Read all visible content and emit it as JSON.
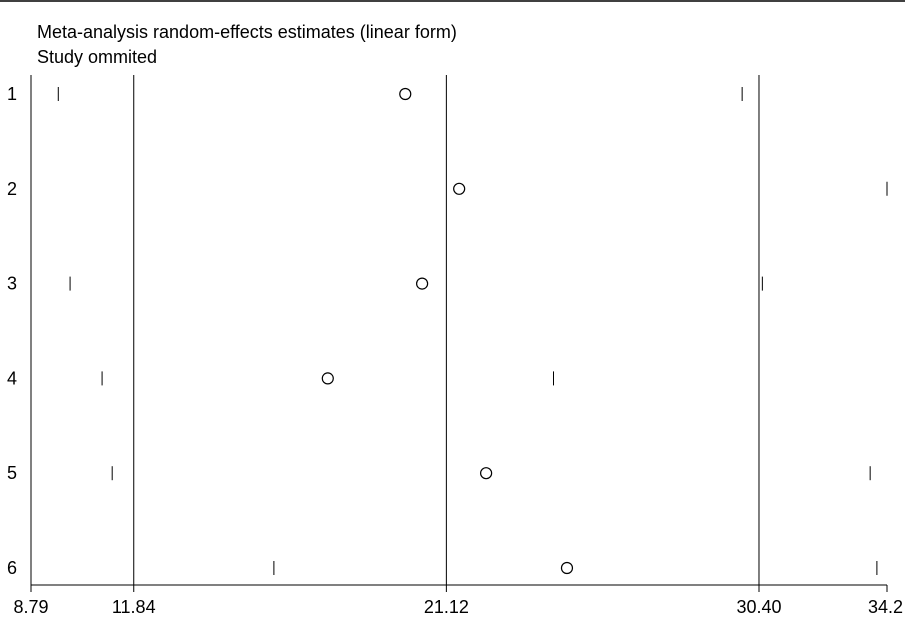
{
  "chart_data": {
    "type": "scatter",
    "title": "Meta-analysis random-effects estimates (linear form)",
    "subtitle": "Study ommited",
    "x_ticks": [
      "8.79",
      "11.84",
      "21.12",
      "30.40",
      "34.2"
    ],
    "x_tick_values": [
      8.79,
      11.84,
      21.12,
      30.4,
      34.2
    ],
    "reference_lines": [
      11.84,
      21.12,
      30.4
    ],
    "xlim": [
      8.79,
      34.2
    ],
    "studies": [
      {
        "label": "1",
        "lower": 9.6,
        "estimate": 19.9,
        "upper": 29.9
      },
      {
        "label": "2",
        "lower": 8.79,
        "estimate": 21.5,
        "upper": 34.4
      },
      {
        "label": "3",
        "lower": 9.95,
        "estimate": 20.4,
        "upper": 30.5
      },
      {
        "label": "4",
        "lower": 10.9,
        "estimate": 17.6,
        "upper": 24.3
      },
      {
        "label": "5",
        "lower": 11.2,
        "estimate": 22.3,
        "upper": 33.7
      },
      {
        "label": "6",
        "lower": 16.0,
        "estimate": 24.7,
        "upper": 33.9
      }
    ]
  }
}
